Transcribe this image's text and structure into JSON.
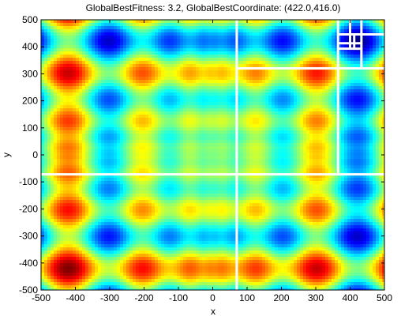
{
  "chart_data": {
    "type": "heatmap",
    "title": "GlobalBestFitness: 3.2, GlobalBestCoordinate: (422.0,416.0)",
    "x_label": "x",
    "y_label": "y",
    "xlim": [
      -500,
      500
    ],
    "ylim": [
      -500,
      500
    ],
    "xticks": [
      -500,
      -400,
      -300,
      -200,
      -100,
      0,
      100,
      200,
      300,
      400,
      500
    ],
    "yticks": [
      -500,
      -400,
      -300,
      -200,
      -100,
      0,
      100,
      200,
      300,
      400,
      500
    ],
    "line_color": "#ffffff",
    "segments": [
      {
        "x": [
          70,
          70
        ],
        "y": [
          -500,
          500
        ]
      },
      {
        "x": [
          -500,
          500
        ],
        "y": [
          -72,
          -72
        ]
      },
      {
        "x": [
          70,
          500
        ],
        "y": [
          320,
          320
        ]
      },
      {
        "x": [
          365,
          365
        ],
        "y": [
          -72,
          500
        ]
      },
      {
        "x": [
          433,
          433
        ],
        "y": [
          320,
          500
        ]
      },
      {
        "x": [
          365,
          500
        ],
        "y": [
          446,
          446
        ]
      },
      {
        "x": [
          365,
          433
        ],
        "y": [
          393,
          393
        ]
      },
      {
        "x": [
          400,
          400
        ],
        "y": [
          393,
          500
        ]
      },
      {
        "x": [
          412,
          412
        ],
        "y": [
          393,
          446
        ]
      },
      {
        "x": [
          365,
          433
        ],
        "y": [
          413,
          413
        ]
      }
    ]
  }
}
